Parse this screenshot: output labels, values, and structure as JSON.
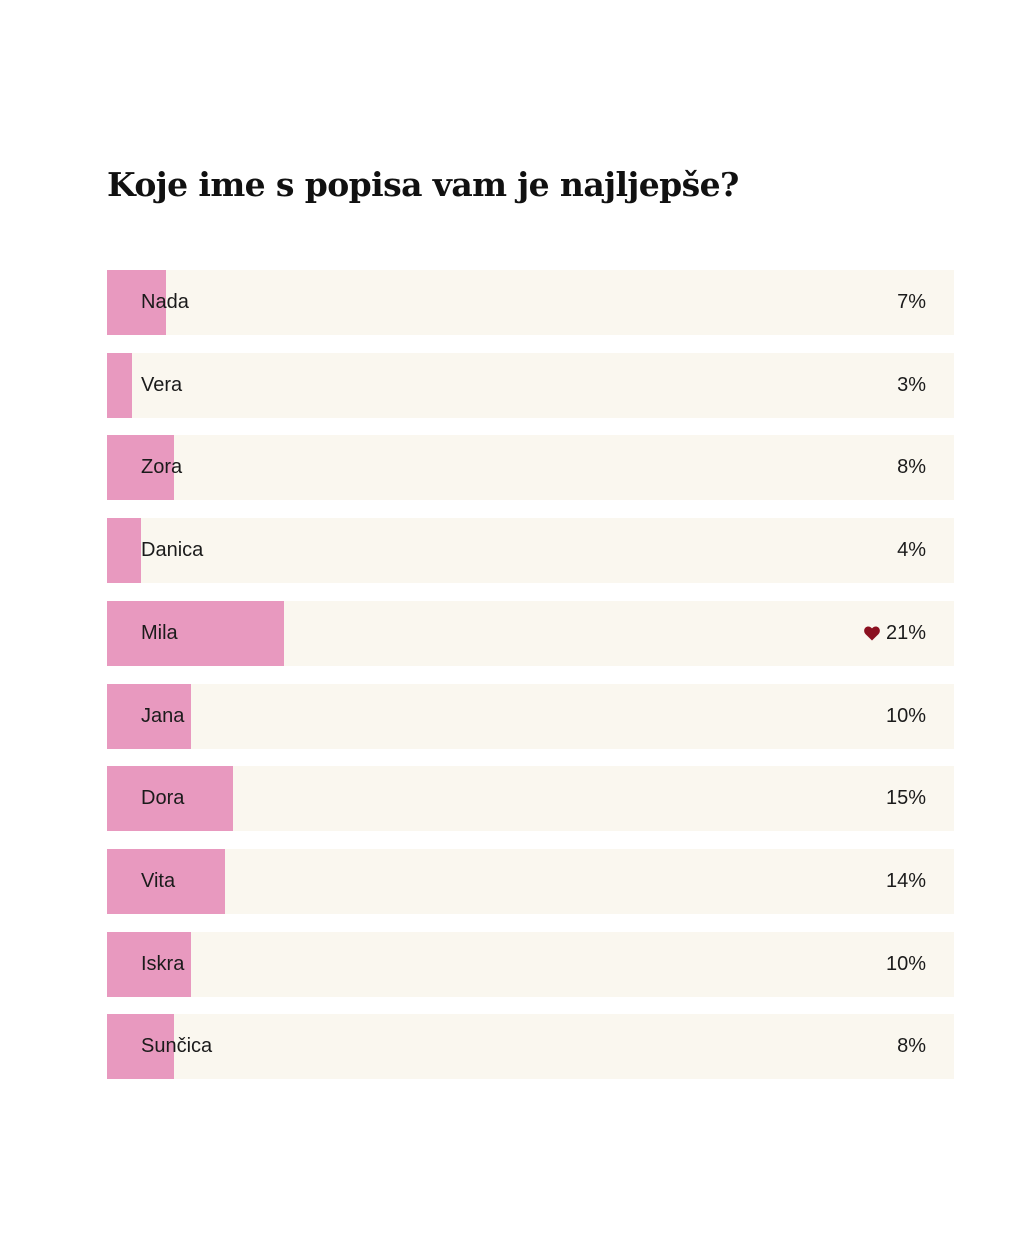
{
  "poll": {
    "title": "Koje ime s popisa vam je najljepše?"
  },
  "colors": {
    "bar_fill": "#e899bf",
    "bar_track": "#faf7ef",
    "heart": "#8b1020"
  },
  "chart_data": {
    "type": "bar",
    "orientation": "horizontal",
    "title": "Koje ime s popisa vam je najljepše?",
    "categories": [
      "Nada",
      "Vera",
      "Zora",
      "Danica",
      "Mila",
      "Jana",
      "Dora",
      "Vita",
      "Iskra",
      "Sunčica"
    ],
    "values": [
      7,
      3,
      8,
      4,
      21,
      10,
      15,
      14,
      10,
      8
    ],
    "value_labels": [
      "7%",
      "3%",
      "8%",
      "4%",
      "21%",
      "10%",
      "15%",
      "14%",
      "10%",
      "8%"
    ],
    "unit": "%",
    "xlim": [
      0,
      100
    ],
    "highlighted": "Mila",
    "highlight_icon": "heart-icon",
    "grid": false,
    "legend": "none"
  }
}
